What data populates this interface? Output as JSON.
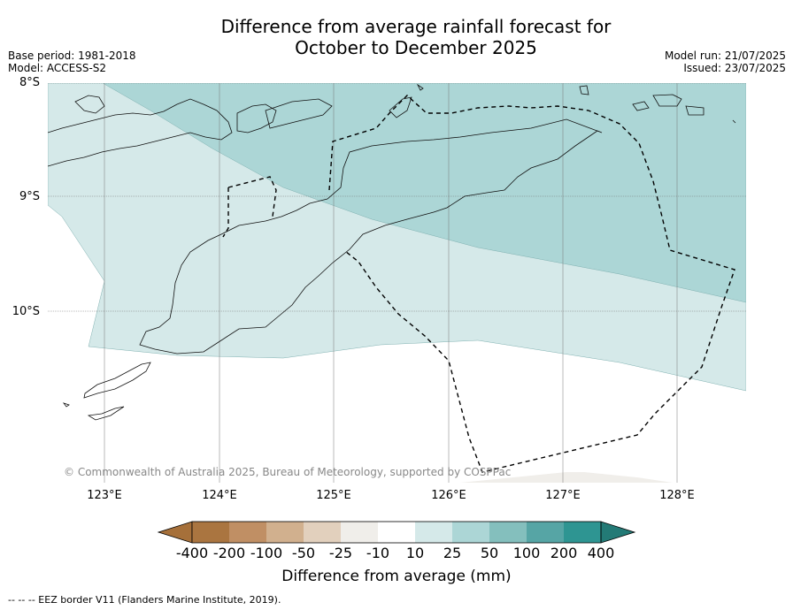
{
  "header": {
    "title_line1": "Difference from average rainfall forecast for",
    "title_line2": "October to December 2025",
    "base_period": "Base period: 1981-2018",
    "model": "Model: ACCESS-S2",
    "model_run": "Model run: 21/07/2025",
    "issued": "Issued: 23/07/2025"
  },
  "map": {
    "lat_labels": [
      "8°S",
      "9°S",
      "10°S"
    ],
    "lon_labels": [
      "123°E",
      "124°E",
      "125°E",
      "126°E",
      "127°E",
      "128°E"
    ],
    "copyright": "© Commonwealth of Australia 2025, Bureau of Meteorology, supported by COSPPac",
    "regions": [
      {
        "category": "25 to 50",
        "color": "#acd6d6"
      },
      {
        "category": "10 to 25",
        "color": "#d5e9e9"
      },
      {
        "category": "-25 to -10",
        "color": "#f0eeea"
      }
    ]
  },
  "colorbar": {
    "title": "Difference from average (mm)",
    "labels": [
      "-400",
      "-200",
      "-100",
      "-50",
      "-25",
      "-10",
      "10",
      "25",
      "50",
      "100",
      "200",
      "400"
    ],
    "colors": [
      "#a6703a",
      "#aa7540",
      "#c08f64",
      "#d1b08e",
      "#e2d0bd",
      "#f0eeea",
      "#ffffff",
      "#d5e9e9",
      "#acd6d6",
      "#84bfbd",
      "#56a5a5",
      "#2e9592",
      "#237a76"
    ]
  },
  "footnote": "--  --  -- EEZ border V11 (Flanders Marine Institute, 2019)."
}
